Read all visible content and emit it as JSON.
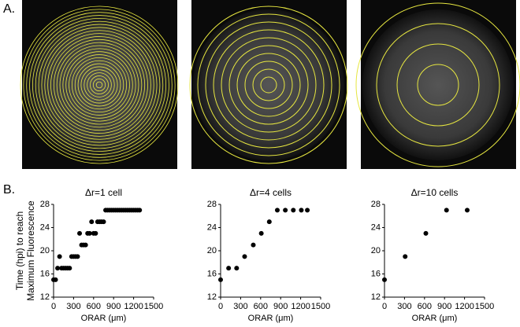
{
  "panel_labels": [
    "A.",
    "B."
  ],
  "chart_data": [
    {
      "type": "scatter",
      "title": "Δr=1 cell",
      "xlabel": "ORAR (μm)",
      "ylabel": [
        "Time (hpi) to reach",
        "Maximum Fluorescence"
      ],
      "x": [
        0,
        30,
        60,
        90,
        120,
        150,
        180,
        210,
        240,
        270,
        300,
        330,
        360,
        390,
        420,
        450,
        480,
        510,
        540,
        570,
        600,
        630,
        660,
        690,
        720,
        750,
        780,
        810,
        840,
        870,
        900,
        930,
        960,
        990,
        1020,
        1050,
        1080,
        1110,
        1140,
        1170,
        1200,
        1230,
        1260,
        1290
      ],
      "values": [
        15,
        15,
        17,
        19,
        17,
        17,
        17,
        17,
        17,
        19,
        19,
        19,
        19,
        23,
        21,
        21,
        21,
        23,
        23,
        25,
        23,
        23,
        25,
        25,
        25,
        25,
        27,
        27,
        27,
        27,
        27,
        27,
        27,
        27,
        27,
        27,
        27,
        27,
        27,
        27,
        27,
        27,
        27,
        27
      ],
      "color": "#000000",
      "xlim": [
        0,
        1500
      ],
      "ylim": [
        12,
        28
      ],
      "xticks": [
        0,
        300,
        600,
        900,
        1200,
        1500
      ],
      "yticks": [
        12,
        16,
        20,
        24,
        28
      ]
    },
    {
      "type": "scatter",
      "title": "Δr=4 cells",
      "xlabel": "ORAR (μm)",
      "x": [
        0,
        120,
        240,
        360,
        490,
        610,
        730,
        850,
        970,
        1090,
        1210,
        1300
      ],
      "values": [
        15,
        17,
        17,
        19,
        21,
        23,
        25,
        27,
        27,
        27,
        27,
        27
      ],
      "color": "#000000",
      "xlim": [
        0,
        1500
      ],
      "ylim": [
        12,
        28
      ],
      "xticks": [
        0,
        300,
        600,
        900,
        1200,
        1500
      ],
      "yticks": [
        12,
        16,
        20,
        24,
        28
      ]
    },
    {
      "type": "scatter",
      "title": "Δr=10 cells",
      "xlabel": "ORAR (μm)",
      "x": [
        0,
        310,
        620,
        930,
        1240
      ],
      "values": [
        15,
        19,
        23,
        27,
        27
      ],
      "color": "#000000",
      "xlim": [
        0,
        1500
      ],
      "ylim": [
        12,
        28
      ],
      "xticks": [
        0,
        300,
        600,
        900,
        1200,
        1500
      ],
      "yticks": [
        12,
        16,
        20,
        24,
        28
      ]
    }
  ]
}
